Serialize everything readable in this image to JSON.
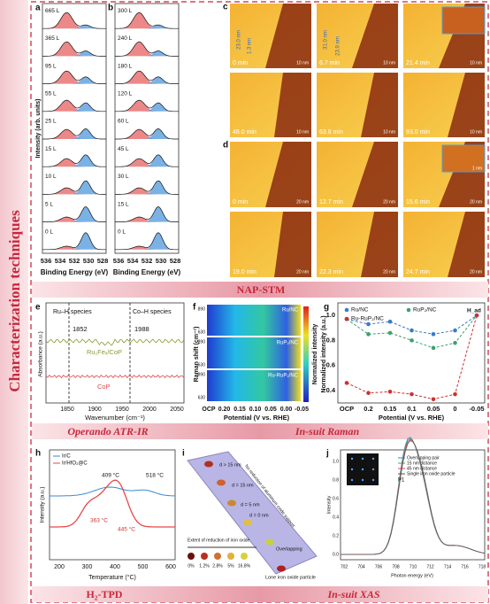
{
  "side_title": "Characterization techniques",
  "banners": {
    "stm": "NAP-STM",
    "ir": "Operando ATR-IR",
    "raman": "In-suit Raman",
    "tpd": "H₂-TPD",
    "xas": "In-suit XAS"
  },
  "panels": {
    "a": {
      "label": "a",
      "doses": [
        "665 L",
        "365 L",
        "95 L",
        "55 L",
        "25 L",
        "15 L",
        "10 L",
        "5 L",
        "0 L"
      ],
      "xticks": [
        "536",
        "534",
        "532",
        "530",
        "528"
      ],
      "xlabel": "Binding Energy (eV)",
      "ylabel": "Intensity (arb. units)"
    },
    "b": {
      "label": "b",
      "doses": [
        "300 L",
        "240 L",
        "180 L",
        "120 L",
        "60 L",
        "45 L",
        "30 L",
        "15 L",
        "0 L"
      ],
      "xticks": [
        "536",
        "534",
        "532",
        "530",
        "528"
      ],
      "xlabel": "Binding Energy (eV)"
    },
    "c": {
      "label": "c",
      "times": [
        "0 min",
        "6.7 min",
        "21.4 min",
        "48.0 min",
        "63.8 min",
        "93.0 min"
      ],
      "scale": "10 nm",
      "notes": [
        "23.0 nm",
        "1.3 nm",
        "31.0 nm",
        "23.9 nm"
      ]
    },
    "d": {
      "label": "d",
      "times": [
        "0 min",
        "12.7 min",
        "15.6 min",
        "19.0 min",
        "22.3 min",
        "24.7 min"
      ],
      "scale": "20 nm",
      "inset_scale": "1 nm"
    },
    "e": {
      "label": "e",
      "ru_h": "Ru–H species",
      "co_h": "Co–H species",
      "peak1": "1852",
      "peak2": "1988",
      "sample1": "Ru₁Feₓ/CoP",
      "sample2": "CoP",
      "ylabel": "Absorbance (a.u.)",
      "xlabel": "Wavenumber (cm⁻¹)",
      "xticks": [
        "1850",
        "1900",
        "1950",
        "2000",
        "2050"
      ]
    },
    "f": {
      "label": "f",
      "samples": [
        "Ru/NC",
        "RuP₂/NC",
        "Ru-RuP₂/NC"
      ],
      "yticks": [
        "890",
        "630"
      ],
      "ylabel": "Raman shift (cm⁻¹)",
      "xticks": [
        "OCP",
        "0.20",
        "0.15",
        "0.10",
        "0.05",
        "0.00",
        "-0.05"
      ],
      "xlabel": "Potential (V vs. RHE)",
      "cbar": "Normalized intensity"
    },
    "g": {
      "label": "g",
      "legend": [
        "Ru/NC",
        "RuP₂/NC",
        "Ru-RuP₂/NC"
      ],
      "had": "H_ad",
      "ylabel": "Normalized intensity (a.u.)",
      "yticks": [
        "1.0",
        "0.8",
        "0.6",
        "0.4"
      ],
      "xticks": [
        "OCP",
        "0.2",
        "0.15",
        "0.1",
        "0.05",
        "0",
        "-0.05"
      ],
      "xlabel": "Potential (V vs. RHE)"
    },
    "h": {
      "label": "h",
      "legend": [
        "Ir/C",
        "Ir/HfO₂@C"
      ],
      "notes": [
        "409 °C",
        "518 °C",
        "363 °C",
        "445 °C"
      ],
      "ylabel": "Intensity (a.u.)",
      "xlabel": "Temperature (°C)",
      "xticks": [
        "200",
        "300",
        "400",
        "500",
        "600"
      ]
    },
    "i": {
      "label": "i",
      "sizes": [
        "d > 15 nm",
        "d = 15 nm",
        "d = 5 nm",
        "d = 0 nm"
      ],
      "overlap": "Overlapping",
      "lone": "Lone iron oxide particle",
      "support": "No reduction of aluminum oxide support",
      "extent": "Extent of reduction of iron oxide",
      "percents": [
        "0%",
        "1.2%",
        "2.8%",
        "5%",
        "16.8%"
      ]
    },
    "j": {
      "label": "j",
      "legend": [
        "Overlapping pair",
        "15 nm distance",
        "45 nm distance",
        "Single iron oxide particle"
      ],
      "peak": "P1",
      "ylabel": "Intensity",
      "xlabel": "Photon energy (eV)",
      "xticks": [
        "702",
        "704",
        "706",
        "708",
        "710",
        "712",
        "714",
        "716",
        "718"
      ],
      "yticks": [
        "1.0",
        "0.8",
        "0.6",
        "0.4",
        "0.2",
        "0.0"
      ]
    }
  }
}
